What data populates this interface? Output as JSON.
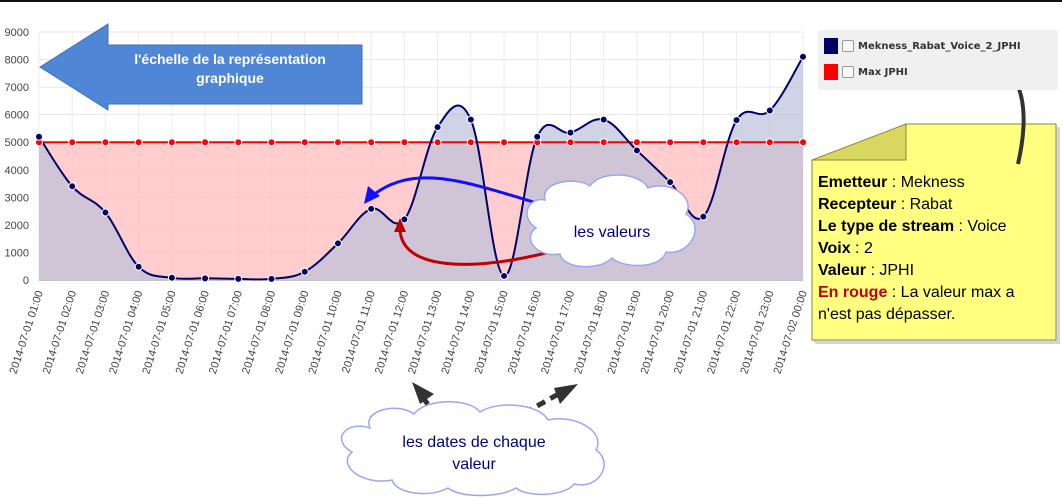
{
  "chart_data": {
    "type": "area",
    "x": [
      "2014-07-01 01:00",
      "2014-07-01 02:00",
      "2014-07-01 03:00",
      "2014-07-01 04:00",
      "2014-07-01 05:00",
      "2014-07-01 06:00",
      "2014-07-01 07:00",
      "2014-07-01 08:00",
      "2014-07-01 09:00",
      "2014-07-01 10:00",
      "2014-07-01 11:00",
      "2014-07-01 12:00",
      "2014-07-01 13:00",
      "2014-07-01 14:00",
      "2014-07-01 15:00",
      "2014-07-01 16:00",
      "2014-07-01 17:00",
      "2014-07-01 18:00",
      "2014-07-01 19:00",
      "2014-07-01 20:00",
      "2014-07-01 21:00",
      "2014-07-01 22:00",
      "2014-07-01 23:00",
      "2014-07-02 00:00"
    ],
    "y_ticks": [
      "0",
      "1000",
      "2000",
      "3000",
      "4000",
      "5000",
      "6000",
      "7000",
      "8000",
      "9000"
    ],
    "ylim": [
      0,
      9000
    ],
    "series": [
      {
        "name": "Mekness_Rabat_Voice_2_JPHI",
        "color": "#000066",
        "fill": "#bcc1dc",
        "values": [
          5200,
          3400,
          2450,
          480,
          80,
          60,
          40,
          40,
          300,
          1330,
          2580,
          2200,
          5550,
          5820,
          150,
          5200,
          5350,
          5820,
          4700,
          3550,
          2300,
          5800,
          6150,
          8100
        ]
      },
      {
        "name": "Max JPHI",
        "color": "#ff0000",
        "fill": "#ffc4c4",
        "values": [
          5000,
          5000,
          5000,
          5000,
          5000,
          5000,
          5000,
          5000,
          5000,
          5000,
          5000,
          5000,
          5000,
          5000,
          5000,
          5000,
          5000,
          5000,
          5000,
          5000,
          5000,
          5000,
          5000,
          5000
        ]
      }
    ],
    "grid": true,
    "legend_placement": "top-right"
  },
  "annotations": {
    "arrow_scale_text": [
      "l'échelle de la représentation",
      "graphique"
    ],
    "values_cloud": "les valeurs",
    "dates_cloud": [
      "les dates de chaque",
      "valeur"
    ]
  },
  "note": {
    "emetteur_label": "Emetteur",
    "emetteur_value": " : Mekness",
    "recepteur_label": "Recepteur",
    "recepteur_value": " : Rabat",
    "stream_label": "Le type de stream",
    "stream_value": " : Voice",
    "voix_label": "Voix",
    "voix_value": " : 2",
    "valeur_label": "Valeur",
    "valeur_value": " : JPHI",
    "rouge_label": "En rouge",
    "rouge_value": " : La valeur max a",
    "rouge_value_2": "n'est pas dépasser."
  },
  "colors": {
    "note_bg": "#ffff80",
    "arrow_blue": "#4f86d6",
    "cloud_border": "#9aa7f0"
  }
}
